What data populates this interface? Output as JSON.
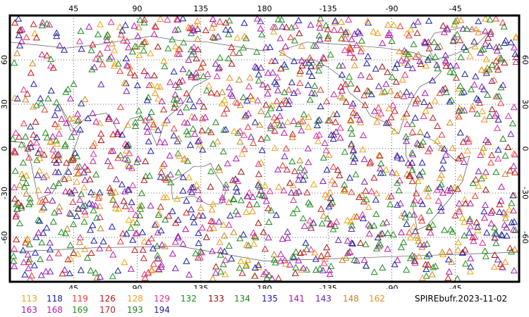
{
  "map": {
    "projection": "cylindrical",
    "center_longitude": 180,
    "lat_range": [
      -90,
      90
    ],
    "grid": "dotted",
    "marker": "triangle-outline"
  },
  "ticks": {
    "top": [
      "45",
      "90",
      "135",
      "180",
      "-135",
      "-90",
      "-45"
    ],
    "bottom": [
      "45",
      "90",
      "135",
      "180",
      "-135",
      "-90",
      "-45"
    ],
    "left": [
      "60",
      "30",
      "0",
      "-30",
      "-60"
    ],
    "right": [
      "60",
      "30",
      "0",
      "-30",
      "-60"
    ]
  },
  "legend": [
    {
      "code": "113",
      "color": "#e8a800"
    },
    {
      "code": "118",
      "color": "#1a1aa6"
    },
    {
      "code": "119",
      "color": "#e83a3a"
    },
    {
      "code": "126",
      "color": "#c81010"
    },
    {
      "code": "128",
      "color": "#f0a030"
    },
    {
      "code": "129",
      "color": "#e0309a"
    },
    {
      "code": "132",
      "color": "#1a8c1a"
    },
    {
      "code": "133",
      "color": "#a01010"
    },
    {
      "code": "134",
      "color": "#228822"
    },
    {
      "code": "135",
      "color": "#1a1aa6"
    },
    {
      "code": "141",
      "color": "#b010b0"
    },
    {
      "code": "143",
      "color": "#7020b0"
    },
    {
      "code": "148",
      "color": "#c08820"
    },
    {
      "code": "162",
      "color": "#f09020"
    },
    {
      "code": "163",
      "color": "#a020b0"
    },
    {
      "code": "168",
      "color": "#c020a0"
    },
    {
      "code": "169",
      "color": "#209020"
    },
    {
      "code": "170",
      "color": "#c02020"
    },
    {
      "code": "193",
      "color": "#208020"
    },
    {
      "code": "194",
      "color": "#2020a0"
    }
  ],
  "footer": {
    "label": "SPIREbufr.2023-11-02"
  }
}
